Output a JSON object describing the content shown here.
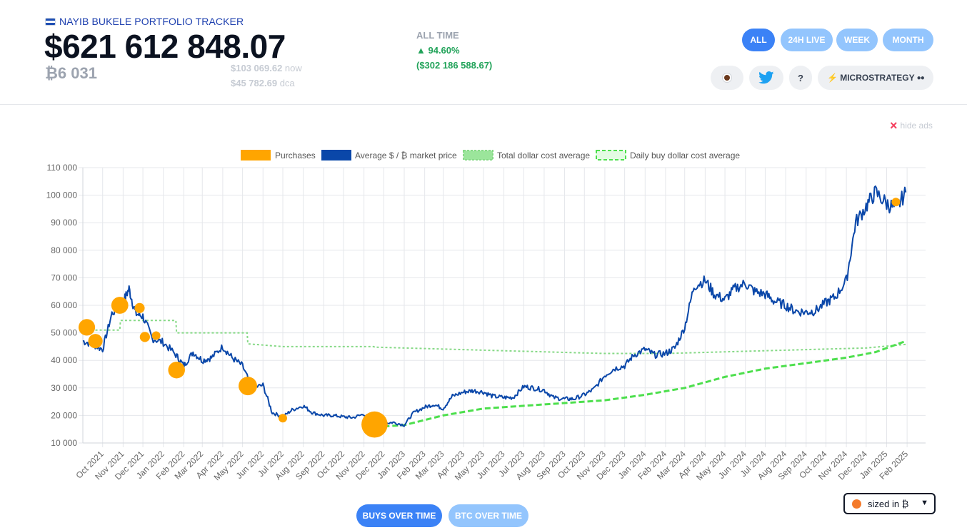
{
  "header": {
    "title": "NAYIB BUKELE PORTFOLIO TRACKER",
    "total_value": "$621 612 848.07",
    "btc_amount": "₿6 031",
    "price_now_value": "$103 069.62",
    "price_now_label": "now",
    "price_dca_value": "$45 782.69",
    "price_dca_label": "dca"
  },
  "alltime": {
    "label": "ALL TIME",
    "pct": "▲ 94.60%",
    "usd": "($302 186 588.67)",
    "positive_color": "#22a35a"
  },
  "range_tabs": [
    {
      "label": "ALL",
      "active": true
    },
    {
      "label": "24H LIVE",
      "active": false
    },
    {
      "label": "WEEK",
      "active": false
    },
    {
      "label": "MONTH",
      "active": false
    }
  ],
  "icon_buttons": {
    "coffee": "coffee-icon",
    "twitter": "twitter-icon",
    "help": "?",
    "microstrategy": "MICROSTRATEGY"
  },
  "ads": {
    "hide_label": "hide ads"
  },
  "colors": {
    "accent": "#3b82f6",
    "accent_light": "#93c5fd",
    "purchase": "#ffa500",
    "price_line": "#0a47a9",
    "dca_total": "#86d986",
    "dca_daily": "#4ddf4d"
  },
  "chart_data": {
    "type": "line",
    "legend": [
      "Purchases",
      "Average $ / ₿ market price",
      "Total dollar cost average",
      "Daily buy dollar cost average"
    ],
    "legend_position": "top",
    "y_ticks": [
      "110 000",
      "100 000",
      "90 000",
      "80 000",
      "70 000",
      "60 000",
      "50 000",
      "40 000",
      "30 000",
      "20 000",
      "10 000"
    ],
    "ylim": [
      10000,
      110000
    ],
    "x_ticks": [
      "Oct 2021",
      "Nov 2021",
      "Dec 2021",
      "Jan 2022",
      "Feb 2022",
      "Mar 2022",
      "Apr 2022",
      "May 2022",
      "Jun 2022",
      "Jul 2022",
      "Aug 2022",
      "Sep 2022",
      "Oct 2022",
      "Nov 2022",
      "Dec 2022",
      "Jan 2023",
      "Feb 2023",
      "Mar 2023",
      "Apr 2023",
      "May 2023",
      "Jun 2023",
      "Jul 2023",
      "Aug 2023",
      "Sep 2023",
      "Oct 2023",
      "Nov 2023",
      "Dec 2023",
      "Jan 2024",
      "Feb 2024",
      "Mar 2024",
      "Apr 2024",
      "May 2024",
      "Jun 2024",
      "Jul 2024",
      "Aug 2024",
      "Sep 2024",
      "Oct 2024",
      "Nov 2024",
      "Dec 2024",
      "Jan 2025",
      "Feb 2025"
    ],
    "grid": true,
    "price_series": {
      "name": "Average $ / ₿ market price",
      "x": [
        "2021-09-01",
        "2021-09-15",
        "2021-10-01",
        "2021-10-15",
        "2021-11-01",
        "2021-11-10",
        "2021-11-20",
        "2021-12-01",
        "2021-12-15",
        "2022-01-01",
        "2022-01-20",
        "2022-02-01",
        "2022-02-15",
        "2022-03-01",
        "2022-03-15",
        "2022-04-01",
        "2022-04-15",
        "2022-05-01",
        "2022-05-15",
        "2022-06-01",
        "2022-06-15",
        "2022-07-01",
        "2022-07-15",
        "2022-08-01",
        "2022-08-15",
        "2022-09-01",
        "2022-09-15",
        "2022-10-01",
        "2022-10-15",
        "2022-11-01",
        "2022-11-15",
        "2022-12-01",
        "2022-12-15",
        "2023-01-01",
        "2023-01-15",
        "2023-02-01",
        "2023-02-15",
        "2023-03-01",
        "2023-03-15",
        "2023-04-01",
        "2023-04-15",
        "2023-05-01",
        "2023-05-15",
        "2023-06-01",
        "2023-06-15",
        "2023-07-01",
        "2023-07-15",
        "2023-08-01",
        "2023-08-15",
        "2023-09-01",
        "2023-09-15",
        "2023-10-01",
        "2023-10-15",
        "2023-11-01",
        "2023-11-15",
        "2023-12-01",
        "2023-12-15",
        "2024-01-01",
        "2024-01-15",
        "2024-02-01",
        "2024-02-15",
        "2024-03-01",
        "2024-03-15",
        "2024-04-01",
        "2024-04-15",
        "2024-05-01",
        "2024-05-15",
        "2024-06-01",
        "2024-06-15",
        "2024-07-01",
        "2024-07-15",
        "2024-08-01",
        "2024-08-15",
        "2024-09-01",
        "2024-09-15",
        "2024-10-01",
        "2024-10-15",
        "2024-11-01",
        "2024-11-15",
        "2024-12-01",
        "2024-12-15",
        "2025-01-01",
        "2025-01-15",
        "2025-01-30"
      ],
      "y": [
        47000,
        46000,
        44000,
        57000,
        61000,
        66000,
        57000,
        56000,
        48000,
        46500,
        42000,
        38000,
        43000,
        40000,
        41000,
        45000,
        41000,
        38000,
        30000,
        31000,
        21000,
        19500,
        22000,
        23500,
        21000,
        20000,
        20000,
        19500,
        19200,
        20500,
        18000,
        17000,
        17500,
        16500,
        21000,
        23000,
        24000,
        22500,
        27000,
        28500,
        29000,
        28500,
        27000,
        26500,
        26500,
        30500,
        30000,
        29200,
        26500,
        26000,
        26000,
        27500,
        29500,
        34500,
        37000,
        38000,
        42000,
        44000,
        42000,
        42500,
        44500,
        52000,
        67000,
        69000,
        64000,
        62000,
        66000,
        68000,
        65000,
        64000,
        61500,
        60000,
        58000,
        57500,
        58000,
        61000,
        63000,
        69000,
        90000,
        96000,
        101000,
        97000,
        95000,
        101000
      ]
    },
    "purchases": [
      {
        "date": "2021-09-07",
        "price": 52000,
        "btc": 400
      },
      {
        "date": "2021-09-20",
        "price": 47000,
        "btc": 300
      },
      {
        "date": "2021-10-27",
        "price": 60000,
        "btc": 420
      },
      {
        "date": "2021-11-26",
        "price": 59000,
        "btc": 150
      },
      {
        "date": "2021-12-04",
        "price": 48500,
        "btc": 150
      },
      {
        "date": "2021-12-21",
        "price": 49000,
        "btc": 21
      },
      {
        "date": "2022-01-21",
        "price": 36500,
        "btc": 410
      },
      {
        "date": "2022-05-09",
        "price": 30700,
        "btc": 500
      },
      {
        "date": "2022-07-01",
        "price": 19000,
        "btc": 80
      },
      {
        "date": "2022-11-17",
        "price": 16700,
        "btc": 1000
      },
      {
        "date": "2025-01-15",
        "price": 97500,
        "btc": 11
      }
    ],
    "total_dca_series": {
      "name": "Total dollar cost average",
      "x": [
        "2021-09-07",
        "2021-10-27",
        "2021-10-28",
        "2022-01-20",
        "2022-01-21",
        "2022-05-08",
        "2022-05-09",
        "2022-07-01",
        "2022-11-16",
        "2022-11-17",
        "2023-06-01",
        "2023-11-01",
        "2024-02-01",
        "2024-07-01",
        "2024-12-01",
        "2025-01-30"
      ],
      "y": [
        51000,
        51000,
        54500,
        54500,
        50000,
        50000,
        46000,
        45000,
        45000,
        44800,
        43500,
        42500,
        42500,
        43500,
        44500,
        45800
      ]
    },
    "daily_dca_series": {
      "name": "Daily buy dollar cost average",
      "x": [
        "2022-12-01",
        "2023-01-01",
        "2023-03-01",
        "2023-05-01",
        "2023-07-01",
        "2023-09-01",
        "2023-11-01",
        "2024-01-01",
        "2024-03-01",
        "2024-05-01",
        "2024-07-01",
        "2024-09-01",
        "2024-11-01",
        "2024-12-15",
        "2025-01-30"
      ],
      "y": [
        16000,
        16500,
        20000,
        22500,
        23500,
        24500,
        25500,
        27500,
        30000,
        34000,
        37000,
        39000,
        41000,
        43000,
        47000
      ]
    }
  },
  "bottom": {
    "buys_over_time": "BUYS OVER TIME",
    "btc_over_time": "BTC OVER TIME",
    "size_select": "sized in ₿"
  }
}
